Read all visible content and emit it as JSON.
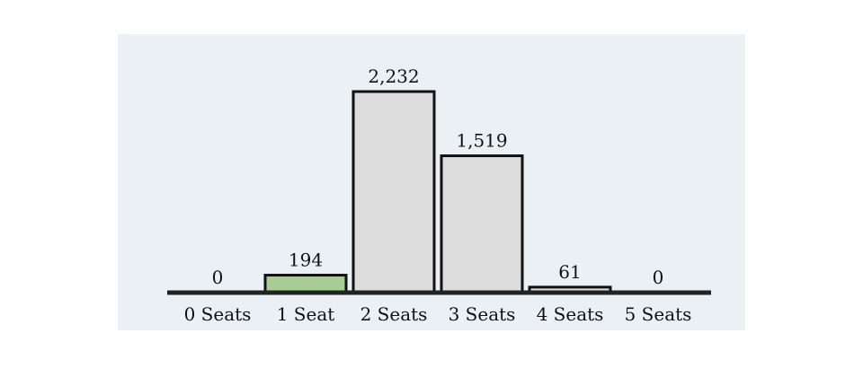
{
  "chart_data": {
    "type": "bar",
    "categories": [
      "0 Seats",
      "1 Seat",
      "2 Seats",
      "3 Seats",
      "4 Seats",
      "5 Seats"
    ],
    "values": [
      0,
      194,
      2232,
      1519,
      61,
      0
    ],
    "value_labels": [
      "0",
      "194",
      "2,232",
      "1,519",
      "61",
      "0"
    ],
    "title": "",
    "xlabel": "",
    "ylabel": "",
    "ylim": [
      0,
      2232
    ],
    "grid": false,
    "legend": "none",
    "highlight_index": 1
  },
  "colors": {
    "background_panel": "#eaf0f4",
    "bar_default": "#dcdcdc",
    "bar_highlight": "#a8cc98",
    "bar_stroke": "#111111",
    "baseline": "#222222"
  }
}
